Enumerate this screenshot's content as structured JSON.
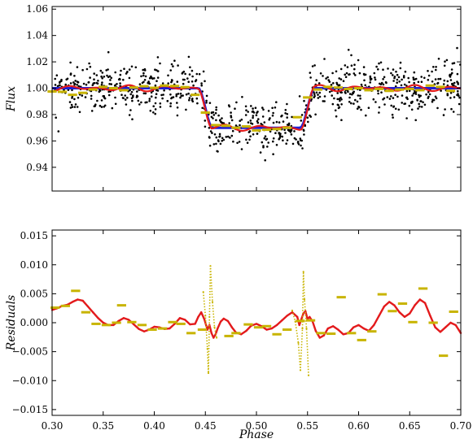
{
  "chart_data": [
    {
      "type": "scatter",
      "title": "",
      "xlabel": "",
      "ylabel": "Flux",
      "xlim": [
        0.3,
        0.7
      ],
      "ylim": [
        0.922,
        1.062
      ],
      "xticks": [
        0.3,
        0.35,
        0.4,
        0.45,
        0.5,
        0.55,
        0.6,
        0.65,
        0.7
      ],
      "yticks": [
        "0.94",
        "0.96",
        "0.98",
        "1.00",
        "1.02",
        "1.04",
        "1.06"
      ],
      "x_tick_labels_visible": false,
      "grid": false,
      "legend": "none",
      "transit": {
        "baseline": 1.0,
        "depth_level": 0.97,
        "ingress": [
          0.443,
          0.457
        ],
        "egress": [
          0.543,
          0.557
        ]
      },
      "series": [
        {
          "role": "observations",
          "style": "black-dots",
          "color": "#000000",
          "count": 900,
          "scatter_sigma": 0.01,
          "x_range": [
            0.3,
            0.7
          ]
        },
        {
          "role": "transit-model",
          "style": "line",
          "color": "#1f1fd6"
        },
        {
          "role": "smoothed-model",
          "style": "line",
          "color": "#e31a1c",
          "wobble_amplitude": 0.0025
        },
        {
          "role": "binned-model",
          "style": "dashes",
          "color": "#c8b400",
          "bins": [
            [
              0.3,
              0.9975
            ],
            [
              0.31,
              0.9973
            ],
            [
              0.32,
              0.995
            ],
            [
              0.33,
              0.9965
            ],
            [
              0.34,
              0.999
            ],
            [
              0.35,
              1.001
            ],
            [
              0.36,
              1.0
            ],
            [
              0.37,
              0.9985
            ],
            [
              0.38,
              1.0005
            ],
            [
              0.39,
              1.0015
            ],
            [
              0.4,
              1.0003
            ],
            [
              0.41,
              1.002
            ],
            [
              0.42,
              1.0017
            ],
            [
              0.43,
              1.0008
            ],
            [
              0.44,
              0.995
            ],
            [
              0.45,
              0.9815
            ],
            [
              0.46,
              0.972
            ],
            [
              0.47,
              0.9715
            ],
            [
              0.48,
              0.97
            ],
            [
              0.49,
              0.971
            ],
            [
              0.5,
              0.968
            ],
            [
              0.51,
              0.9685
            ],
            [
              0.52,
              0.969
            ],
            [
              0.53,
              0.97
            ],
            [
              0.54,
              0.978
            ],
            [
              0.55,
              0.993
            ],
            [
              0.56,
              0.999
            ],
            [
              0.57,
              1.001
            ],
            [
              0.58,
              1.0005
            ],
            [
              0.59,
              0.9995
            ],
            [
              0.6,
              1.0
            ],
            [
              0.61,
              0.9985
            ],
            [
              0.62,
              0.9995
            ],
            [
              0.63,
              0.998
            ],
            [
              0.64,
              0.999
            ],
            [
              0.65,
              0.9995
            ],
            [
              0.66,
              0.9985
            ],
            [
              0.67,
              1.002
            ],
            [
              0.68,
              1.001
            ],
            [
              0.69,
              0.998
            ]
          ]
        }
      ]
    },
    {
      "type": "scatter",
      "title": "",
      "xlabel": "Phase",
      "ylabel": "Residuals",
      "xlim": [
        0.3,
        0.7
      ],
      "ylim": [
        -0.016,
        0.016
      ],
      "xticks": [
        "0.30",
        "0.35",
        "0.40",
        "0.45",
        "0.50",
        "0.55",
        "0.60",
        "0.65",
        "0.70"
      ],
      "yticks": [
        "−0.015",
        "−0.010",
        "−0.005",
        "0.000",
        "0.005",
        "0.010",
        "0.015"
      ],
      "grid": false,
      "legend": "none",
      "series": [
        {
          "role": "smoothed-residuals",
          "style": "red-dotted-curve",
          "color": "#e31a1c",
          "points": [
            [
              0.3,
              0.0022
            ],
            [
              0.305,
              0.0025
            ],
            [
              0.31,
              0.0029
            ],
            [
              0.315,
              0.0031
            ],
            [
              0.32,
              0.0036
            ],
            [
              0.325,
              0.004
            ],
            [
              0.33,
              0.0038
            ],
            [
              0.335,
              0.0028
            ],
            [
              0.34,
              0.0018
            ],
            [
              0.345,
              0.0008
            ],
            [
              0.35,
              0.0
            ],
            [
              0.355,
              -0.0004
            ],
            [
              0.36,
              -0.0004
            ],
            [
              0.365,
              0.0003
            ],
            [
              0.37,
              0.0008
            ],
            [
              0.375,
              0.0005
            ],
            [
              0.38,
              -0.0003
            ],
            [
              0.385,
              -0.0011
            ],
            [
              0.39,
              -0.0015
            ],
            [
              0.395,
              -0.0012
            ],
            [
              0.4,
              -0.0007
            ],
            [
              0.405,
              -0.0008
            ],
            [
              0.41,
              -0.0011
            ],
            [
              0.415,
              -0.001
            ],
            [
              0.42,
              -0.0002
            ],
            [
              0.425,
              0.0008
            ],
            [
              0.43,
              0.0005
            ],
            [
              0.435,
              -0.0003
            ],
            [
              0.44,
              -0.0002
            ],
            [
              0.443,
              0.001
            ],
            [
              0.446,
              0.0018
            ],
            [
              0.449,
              0.0006
            ],
            [
              0.452,
              -0.0012
            ],
            [
              0.454,
              -0.0004
            ],
            [
              0.456,
              -0.0018
            ],
            [
              0.458,
              -0.0026
            ],
            [
              0.46,
              -0.002
            ],
            [
              0.462,
              -0.001
            ],
            [
              0.465,
              0.0002
            ],
            [
              0.468,
              0.0007
            ],
            [
              0.472,
              0.0003
            ],
            [
              0.476,
              -0.0008
            ],
            [
              0.48,
              -0.0017
            ],
            [
              0.485,
              -0.002
            ],
            [
              0.49,
              -0.0014
            ],
            [
              0.495,
              -0.0005
            ],
            [
              0.5,
              -0.0002
            ],
            [
              0.505,
              -0.0006
            ],
            [
              0.51,
              -0.0012
            ],
            [
              0.515,
              -0.001
            ],
            [
              0.52,
              -0.0004
            ],
            [
              0.525,
              0.0004
            ],
            [
              0.53,
              0.0012
            ],
            [
              0.535,
              0.0018
            ],
            [
              0.54,
              0.001
            ],
            [
              0.542,
              -0.0004
            ],
            [
              0.544,
              0.0006
            ],
            [
              0.546,
              0.0016
            ],
            [
              0.548,
              0.002
            ],
            [
              0.55,
              0.0006
            ],
            [
              0.552,
              0.001
            ],
            [
              0.555,
              0.0002
            ],
            [
              0.558,
              -0.0014
            ],
            [
              0.562,
              -0.0026
            ],
            [
              0.566,
              -0.0022
            ],
            [
              0.57,
              -0.001
            ],
            [
              0.575,
              -0.0006
            ],
            [
              0.58,
              -0.0012
            ],
            [
              0.585,
              -0.002
            ],
            [
              0.59,
              -0.0018
            ],
            [
              0.595,
              -0.0008
            ],
            [
              0.6,
              -0.0004
            ],
            [
              0.605,
              -0.001
            ],
            [
              0.61,
              -0.0014
            ],
            [
              0.615,
              -0.0004
            ],
            [
              0.62,
              0.0012
            ],
            [
              0.625,
              0.0028
            ],
            [
              0.63,
              0.0036
            ],
            [
              0.635,
              0.003
            ],
            [
              0.64,
              0.0018
            ],
            [
              0.645,
              0.001
            ],
            [
              0.65,
              0.0016
            ],
            [
              0.655,
              0.003
            ],
            [
              0.66,
              0.004
            ],
            [
              0.665,
              0.0034
            ],
            [
              0.67,
              0.0012
            ],
            [
              0.675,
              -0.0008
            ],
            [
              0.68,
              -0.0016
            ],
            [
              0.685,
              -0.0008
            ],
            [
              0.69,
              0.0
            ],
            [
              0.695,
              -0.0004
            ],
            [
              0.7,
              -0.0018
            ]
          ]
        },
        {
          "role": "binned-residuals",
          "style": "dashes",
          "color": "#c8b400",
          "bins": [
            [
              0.303,
              0.0026
            ],
            [
              0.313,
              0.0029
            ],
            [
              0.323,
              0.0055
            ],
            [
              0.333,
              0.0018
            ],
            [
              0.343,
              -0.0002
            ],
            [
              0.353,
              -0.0004
            ],
            [
              0.363,
              0.0
            ],
            [
              0.368,
              0.003
            ],
            [
              0.378,
              0.0001
            ],
            [
              0.388,
              -0.0004
            ],
            [
              0.398,
              -0.0012
            ],
            [
              0.408,
              -0.001
            ],
            [
              0.418,
              0.0001
            ],
            [
              0.426,
              -0.0002
            ],
            [
              0.436,
              -0.0018
            ],
            [
              0.447,
              -0.0012
            ],
            [
              0.473,
              -0.0023
            ],
            [
              0.48,
              -0.0018
            ],
            [
              0.492,
              -0.0003
            ],
            [
              0.502,
              -0.0008
            ],
            [
              0.51,
              -0.0006
            ],
            [
              0.52,
              -0.002
            ],
            [
              0.53,
              -0.0012
            ],
            [
              0.543,
              0.0003
            ],
            [
              0.553,
              0.0004
            ],
            [
              0.563,
              -0.0018
            ],
            [
              0.573,
              -0.0019
            ],
            [
              0.583,
              0.0044
            ],
            [
              0.593,
              -0.0018
            ],
            [
              0.603,
              -0.003
            ],
            [
              0.613,
              -0.0015
            ],
            [
              0.623,
              0.0049
            ],
            [
              0.633,
              0.002
            ],
            [
              0.643,
              0.0033
            ],
            [
              0.653,
              0.0001
            ],
            [
              0.663,
              0.0059
            ],
            [
              0.673,
              0.0
            ],
            [
              0.683,
              -0.0057
            ],
            [
              0.693,
              0.0019
            ]
          ]
        },
        {
          "role": "ingress-egress-spikes",
          "style": "yellow-dotted-curve",
          "color": "#c8b400",
          "points": [
            [
              0.448,
              0.0053
            ],
            [
              0.45,
              0.0012
            ],
            [
              0.452,
              -0.0045
            ],
            [
              0.453,
              -0.0087
            ],
            [
              0.454,
              0.001
            ],
            [
              0.455,
              0.0098
            ],
            [
              0.457,
              0.0036
            ],
            [
              0.459,
              -0.0008
            ],
            [
              0.461,
              -0.0026
            ],
            [
              0.535,
              0.0021
            ],
            [
              0.538,
              0.0002
            ],
            [
              0.541,
              -0.0035
            ],
            [
              0.543,
              -0.0082
            ],
            [
              0.545,
              -0.001
            ],
            [
              0.546,
              0.0088
            ],
            [
              0.547,
              0.004
            ],
            [
              0.549,
              -0.001
            ],
            [
              0.551,
              -0.0091
            ]
          ]
        }
      ]
    }
  ]
}
